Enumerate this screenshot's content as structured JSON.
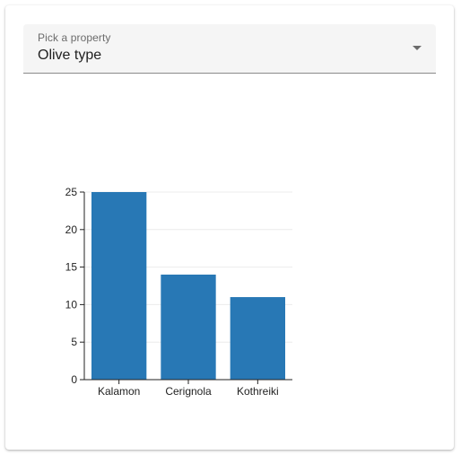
{
  "select": {
    "label": "Pick a property",
    "value": "Olive type"
  },
  "icons": {
    "dropdown": "arrow-drop-down-icon"
  },
  "colors": {
    "bar": "#2878b5"
  },
  "chart_data": {
    "type": "bar",
    "categories": [
      "Kalamon",
      "Cerignola",
      "Kothreiki"
    ],
    "values": [
      25,
      14,
      11
    ],
    "ylim": [
      0,
      25
    ],
    "yticks": [
      0,
      5,
      10,
      15,
      20,
      25
    ],
    "grid": true,
    "legend": "none"
  }
}
